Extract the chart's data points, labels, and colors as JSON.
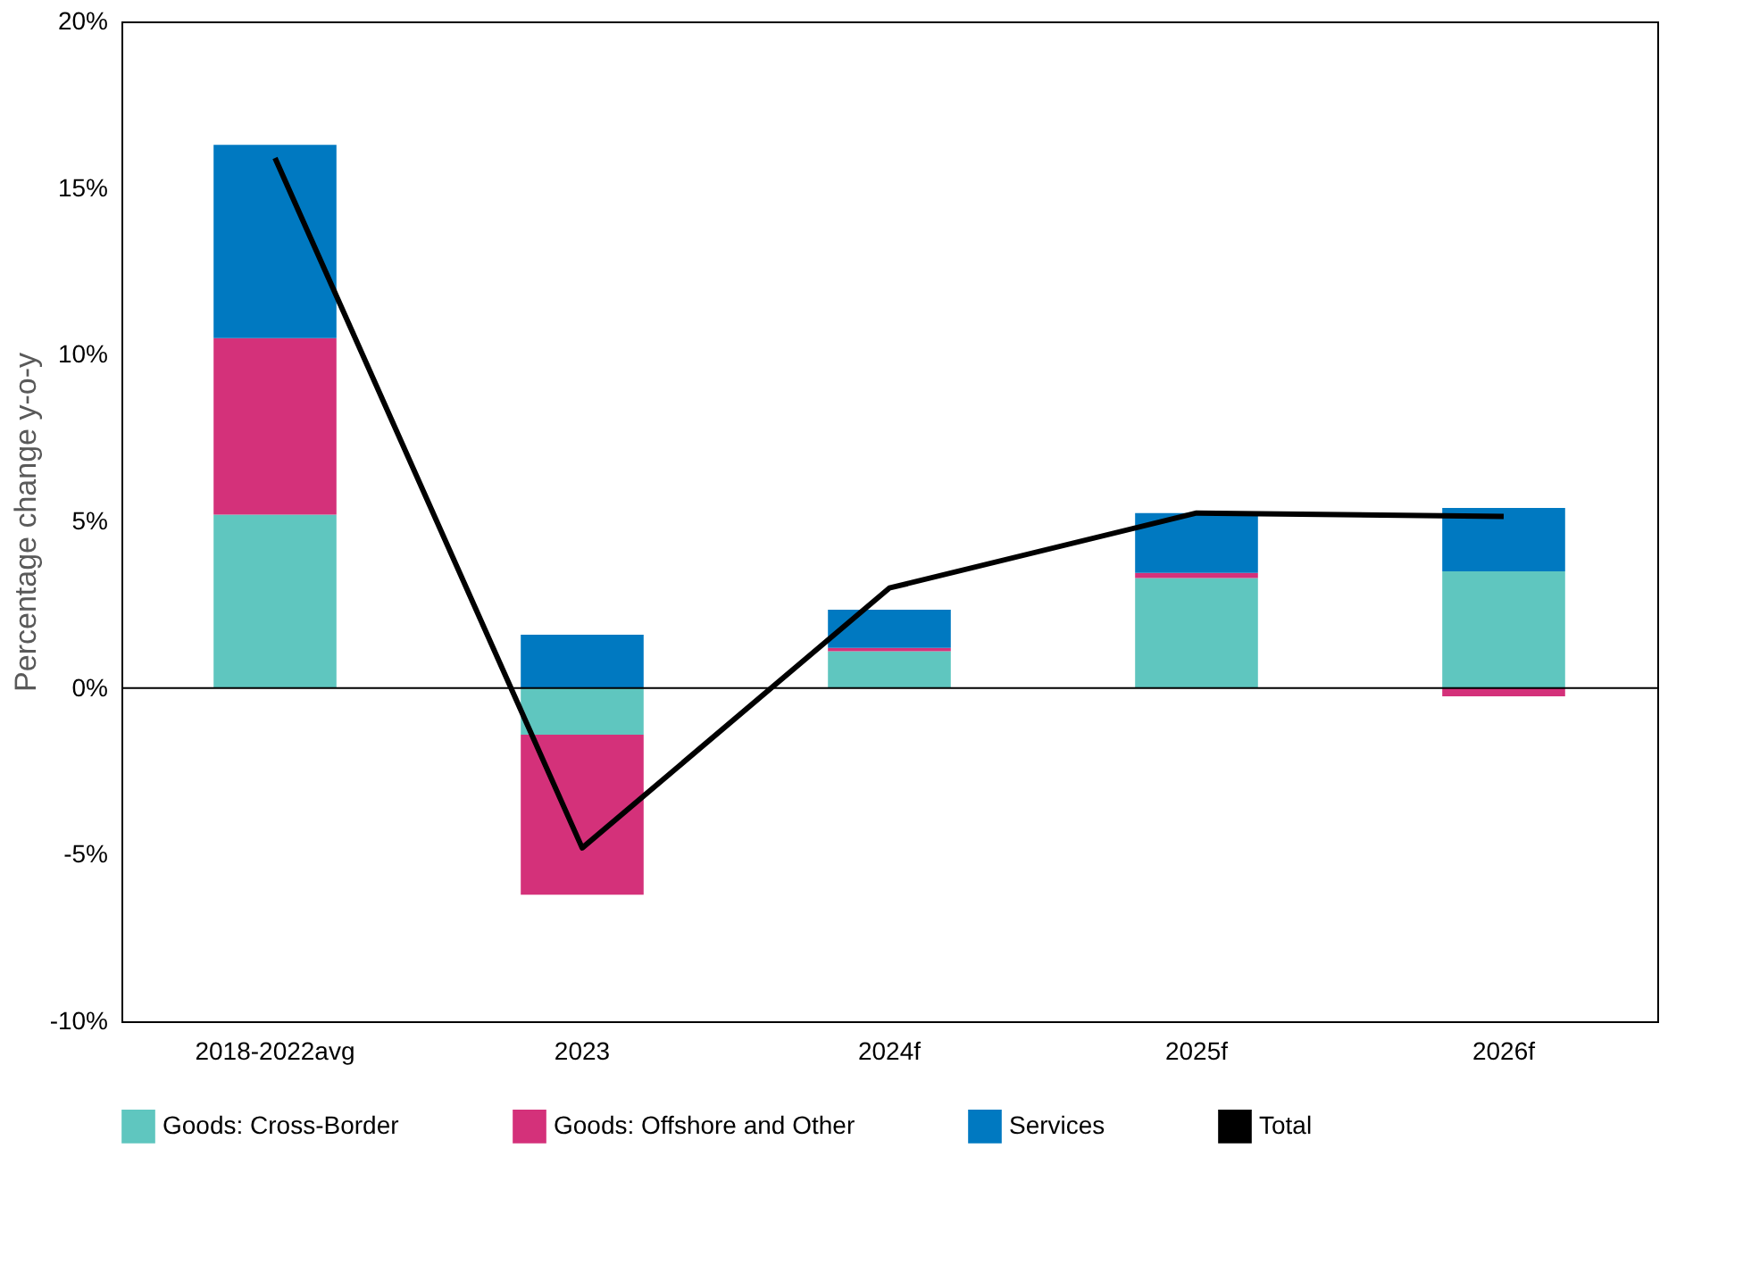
{
  "chart_data": {
    "type": "bar",
    "stacked": true,
    "ylabel": "Percentage change y-o-y",
    "categories": [
      "2018-2022avg",
      "2023",
      "2024f",
      "2025f",
      "2026f"
    ],
    "series": [
      {
        "name": "Goods: Cross-Border",
        "color": "#5fc6bf",
        "values": [
          5.2,
          -1.4,
          1.1,
          3.3,
          3.5
        ]
      },
      {
        "name": "Goods: Offshore and Other",
        "color": "#d4317a",
        "values": [
          5.3,
          -4.8,
          0.1,
          0.15,
          -0.25
        ]
      },
      {
        "name": "Services",
        "color": "#0079c1",
        "values": [
          5.8,
          1.6,
          1.15,
          1.8,
          1.9
        ]
      },
      {
        "name": "Total",
        "type": "line",
        "color": "#000000",
        "values": [
          15.9,
          -4.8,
          3.0,
          5.25,
          5.15
        ]
      }
    ],
    "ylim": [
      -10,
      20
    ],
    "yticks": [
      {
        "value": -10,
        "label": "-10%"
      },
      {
        "value": -5,
        "label": "-5%"
      },
      {
        "value": 0,
        "label": "0%"
      },
      {
        "value": 5,
        "label": "5%"
      },
      {
        "value": 10,
        "label": "10%"
      },
      {
        "value": 15,
        "label": "15%"
      },
      {
        "value": 20,
        "label": "20%"
      }
    ],
    "ref_lines": [
      {
        "axis": "y",
        "value": 0,
        "color": "#000000"
      }
    ],
    "grid": false,
    "legend": "bottom"
  }
}
